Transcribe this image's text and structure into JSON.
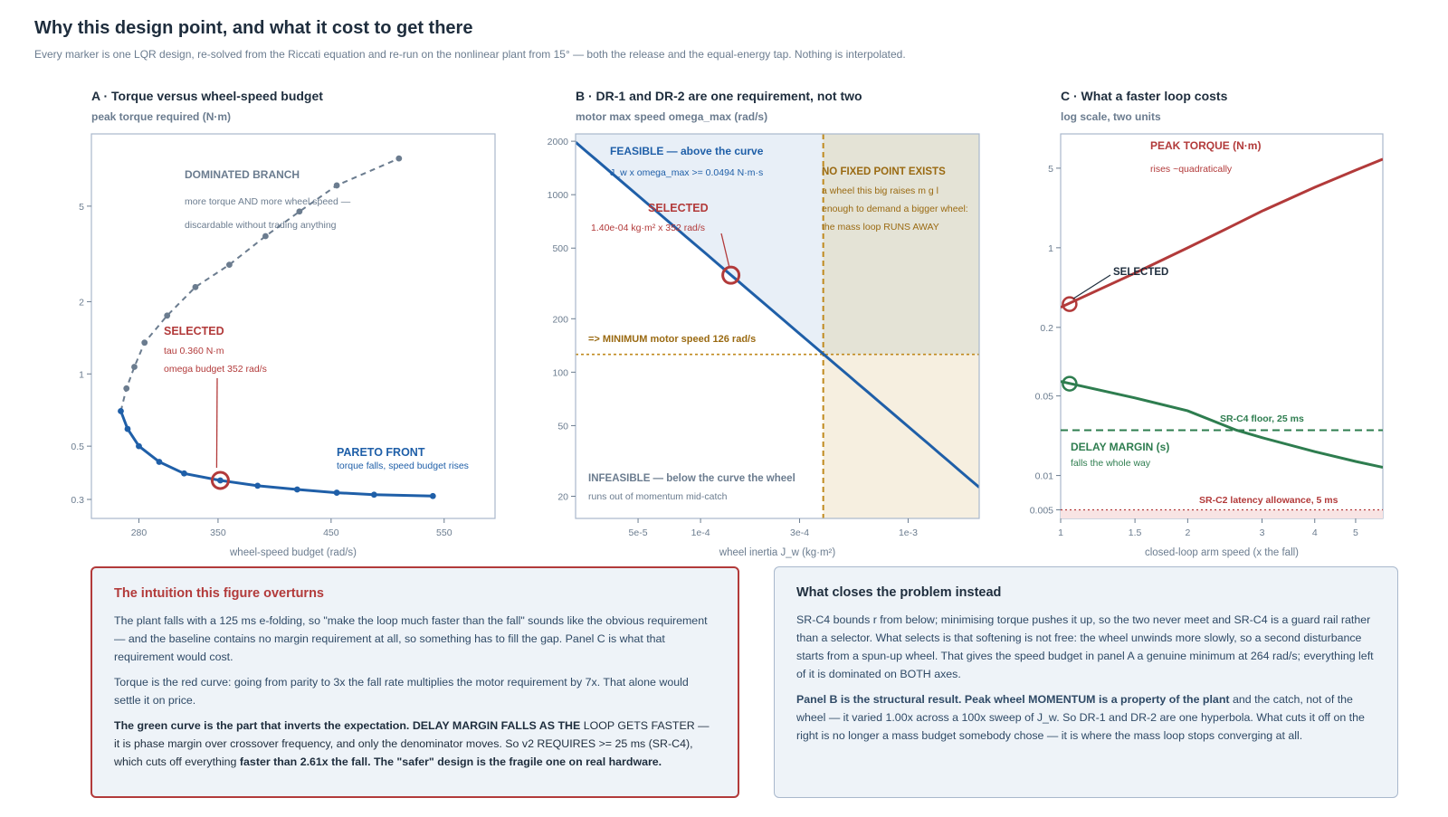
{
  "page": {
    "title": "Why this design point, and what it cost to get there",
    "subtitle": "Every marker is one LQR design, re-solved from the Riccati equation and re-run on the nonlinear plant from 15° — both the release and the equal-energy tap. Nothing is interpolated."
  },
  "colors": {
    "red": "#b23a3a",
    "blue": "#1f5fa8",
    "slate": "#6b7c8f",
    "gold": "#c08a1e",
    "green": "#2e7d4f",
    "navy": "#1e2d3d"
  },
  "panels": {
    "a": {
      "title": "A · Torque versus wheel-speed budget",
      "ylabel": "peak torque required (N·m)",
      "xlabel": "wheel-speed budget (rad/s)",
      "dominated_title": "DOMINATED BRANCH",
      "dominated_line1": "more torque AND more wheel speed —",
      "dominated_line2": "discardable without trading anything",
      "selected_title": "SELECTED",
      "selected_tau": "tau 0.360 N·m",
      "selected_omega": "omega budget 352 rad/s",
      "pareto_title": "PARETO FRONT",
      "pareto_sub": "torque falls, speed budget rises"
    },
    "b": {
      "title": "B · DR-1 and DR-2 are one requirement, not two",
      "ylabel": "motor max speed omega_max (rad/s)",
      "xlabel": "wheel inertia J_w (kg·m²)",
      "feasible_title": "FEASIBLE — above the curve",
      "feasible_sub": "J_w x omega_max >= 0.0494 N·m·s",
      "selected_title": "SELECTED",
      "selected_sub": "1.40e-04 kg·m² x 352 rad/s",
      "nofixed_title": "NO FIXED POINT EXISTS",
      "nofixed_1": "a wheel this big raises m g l",
      "nofixed_2": "enough to demand a bigger wheel:",
      "nofixed_3": "the mass loop RUNS AWAY",
      "minimum": "=> MINIMUM motor speed 126 rad/s",
      "infeasible_title": "INFEASIBLE — below the curve the wheel",
      "infeasible_sub": "runs out of momentum mid-catch"
    },
    "c": {
      "title": "C · What a faster loop costs",
      "ylabel": "log scale, two units",
      "xlabel": "closed-loop arm speed (x the fall)",
      "torque_title": "PEAK TORQUE (N·m)",
      "torque_sub": "rises ~quadratically",
      "selected_label": "SELECTED",
      "floor_label": "SR-C4 floor, 25 ms",
      "delay_title": "DELAY MARGIN (s)",
      "delay_sub": "falls the whole way",
      "latency_label": "SR-C2 latency allowance, 5 ms"
    }
  },
  "chart_data": [
    {
      "type": "line",
      "title": "A · Torque versus wheel-speed budget",
      "xlabel": "wheel-speed budget (rad/s)",
      "ylabel": "peak torque required (N·m)",
      "x_ticks": [
        280,
        350,
        450,
        550
      ],
      "y_ticks": [
        "0.3",
        "0.5",
        "1",
        "2",
        "5"
      ],
      "yscale": "log",
      "xlim": [
        238,
        595
      ],
      "ylim": [
        0.25,
        10
      ],
      "series": [
        {
          "name": "PARETO FRONT",
          "style": "solid",
          "color": "#1f5fa8",
          "points": [
            [
              264,
              0.7
            ],
            [
              270,
              0.59
            ],
            [
              280,
              0.5
            ],
            [
              298,
              0.43
            ],
            [
              320,
              0.385
            ],
            [
              352,
              0.36
            ],
            [
              385,
              0.342
            ],
            [
              420,
              0.33
            ],
            [
              455,
              0.32
            ],
            [
              488,
              0.314
            ],
            [
              540,
              0.31
            ]
          ]
        },
        {
          "name": "DOMINATED BRANCH",
          "style": "dashed",
          "color": "#6b7c8f",
          "points": [
            [
              264,
              0.7
            ],
            [
              269,
              0.87
            ],
            [
              276,
              1.07
            ],
            [
              285,
              1.35
            ],
            [
              305,
              1.75
            ],
            [
              330,
              2.3
            ],
            [
              360,
              2.85
            ],
            [
              392,
              3.75
            ],
            [
              422,
              4.75
            ],
            [
              455,
              6.1
            ],
            [
              510,
              7.9
            ]
          ]
        }
      ],
      "selected": {
        "x": 352,
        "y": 0.36
      }
    },
    {
      "type": "line",
      "title": "B · DR-1 and DR-2 are one requirement, not two",
      "xlabel": "wheel inertia J_w (kg·m²)",
      "ylabel": "motor max speed omega_max (rad/s)",
      "xscale": "log",
      "yscale": "log",
      "x_ticks": [
        "5e-5",
        "1e-4",
        "3e-4",
        "1e-3"
      ],
      "y_ticks": [
        "20",
        "50",
        "100",
        "200",
        "500",
        "1000",
        "2000"
      ],
      "xlim": [
        2.5e-05,
        0.0022
      ],
      "ylim": [
        15,
        2200
      ],
      "series": [
        {
          "name": "J_w x omega_max >= 0.0494 N·m·s",
          "momentum": 0.0494,
          "color": "#1f5fa8"
        }
      ],
      "runaway_jw": 0.00039,
      "minimum_omega": 126,
      "selected": {
        "x": 0.00014,
        "y": 352
      }
    },
    {
      "type": "line",
      "title": "C · What a faster loop costs",
      "xlabel": "closed-loop arm speed (x the fall)",
      "ylabel": "log scale, two units",
      "xscale": "log",
      "yscale": "log",
      "x_ticks": [
        "1",
        "1.5",
        "2",
        "3",
        "4",
        "5"
      ],
      "y_ticks": [
        "0.005",
        "0.01",
        "0.05",
        "0.2",
        "1",
        "5"
      ],
      "xlim": [
        1,
        5.8
      ],
      "ylim": [
        0.0042,
        10
      ],
      "series": [
        {
          "name": "PEAK TORQUE (N·m)",
          "color": "#b23a3a",
          "points": [
            [
              1.0,
              0.3
            ],
            [
              1.5,
              0.6
            ],
            [
              2.0,
              1.0
            ],
            [
              2.5,
              1.5
            ],
            [
              3.0,
              2.1
            ],
            [
              4.0,
              3.4
            ],
            [
              5.0,
              4.8
            ],
            [
              5.8,
              6.0
            ]
          ]
        },
        {
          "name": "DELAY MARGIN (s)",
          "color": "#2e7d4f",
          "points": [
            [
              1.0,
              0.067
            ],
            [
              1.5,
              0.048
            ],
            [
              2.0,
              0.037
            ],
            [
              2.61,
              0.025
            ],
            [
              3.0,
              0.0215
            ],
            [
              4.0,
              0.0162
            ],
            [
              5.0,
              0.0133
            ],
            [
              5.8,
              0.0118
            ]
          ]
        }
      ],
      "thresholds": [
        {
          "name": "SR-C4 floor, 25 ms",
          "y": 0.025
        },
        {
          "name": "SR-C2 latency allowance, 5 ms",
          "y": 0.005
        }
      ],
      "selected": {
        "x": 1.05,
        "torque": 0.32,
        "delay": 0.064
      }
    }
  ],
  "notes": {
    "left": {
      "title": "The intuition this figure overturns",
      "p1": "The plant falls with a 125 ms e-folding, so \"make the loop much faster than the fall\" sounds like the obvious requirement — and the baseline contains no margin requirement at all, so something has to fill the gap. Panel C is what that requirement would cost.",
      "p2": "Torque is the red curve: going from parity to 3x the fall rate multiplies the motor requirement by 7x. That alone would settle it on price.",
      "p3_bold": "The green curve is the part that inverts the expectation. DELAY MARGIN FALLS AS THE",
      "p3_rest": "LOOP GETS FASTER — it is phase margin over crossover frequency, and only the denominator moves. So v2 REQUIRES >= 25 ms (SR-C4), which cuts off everything",
      "p3_end": "faster than 2.61x the fall. The \"safer\" design is the fragile one on real hardware."
    },
    "right": {
      "title": "What closes the problem instead",
      "p1": "SR-C4 bounds r from below; minimising torque pushes it up, so the two never meet and SR-C4 is a guard rail rather than a selector. What selects is that softening is not free: the wheel unwinds more slowly, so a second disturbance starts from a spun-up wheel. That gives the speed budget in panel A a genuine minimum at 264 rad/s; everything left of it is dominated on BOTH axes.",
      "p2_bold": "Panel B is the structural result. Peak wheel MOMENTUM is a property of the plant",
      "p2_rest": "and the catch, not of the wheel — it varied 1.00x across a 100x sweep of J_w. So DR-1 and DR-2 are one hyperbola. What cuts it off on the right is no longer a mass budget somebody chose — it is where the mass loop stops converging at all."
    }
  }
}
